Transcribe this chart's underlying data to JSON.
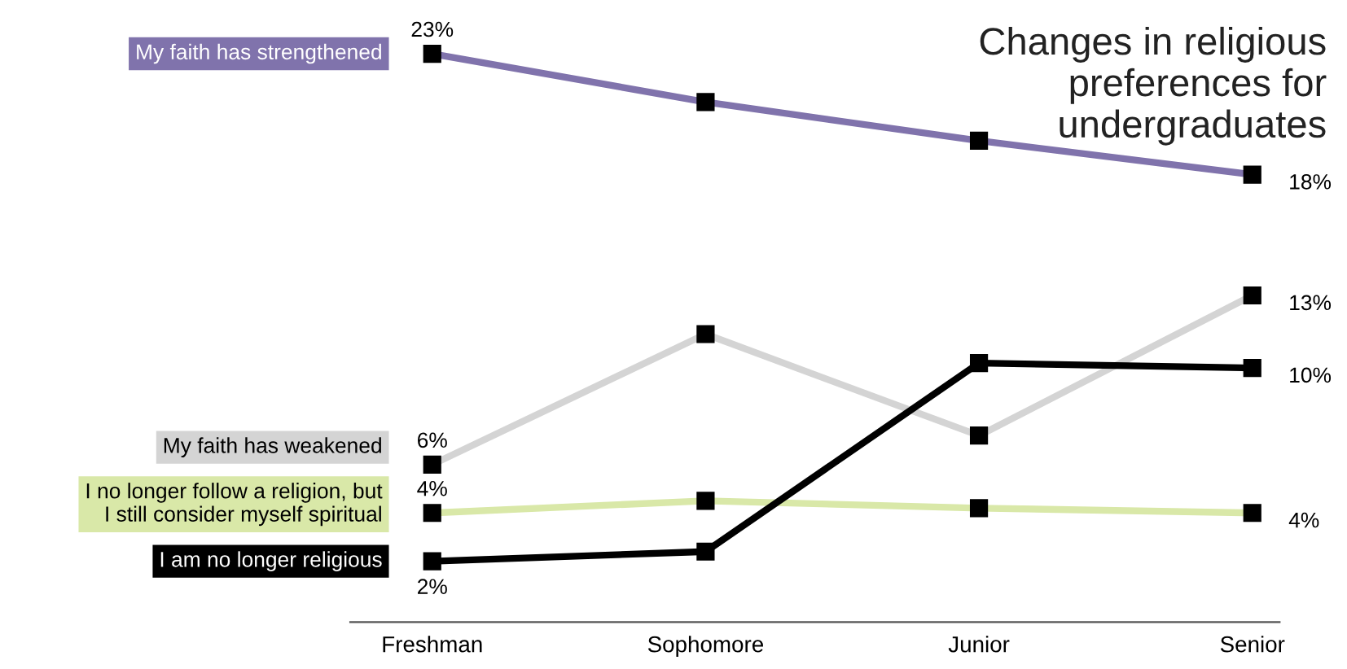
{
  "chart_data": {
    "type": "line",
    "title": "Changes in religious\npreferences for\nundergraduates",
    "categories": [
      "Freshman",
      "Sophomore",
      "Junior",
      "Senior"
    ],
    "marker": "square",
    "grid": false,
    "legend": false,
    "series": [
      {
        "name": "My faith has strengthened",
        "color": "#8073ac",
        "values": [
          23,
          21,
          19.4,
          18
        ],
        "value_labels": [
          "23%",
          null,
          null,
          "18%"
        ]
      },
      {
        "name": "My faith has weakened",
        "color": "#d4d4d4",
        "values": [
          6,
          11.4,
          7.2,
          13
        ],
        "value_labels": [
          "6%",
          null,
          null,
          "13%"
        ]
      },
      {
        "name": "I no longer follow a religion, but\nI still consider myself spiritual",
        "color": "#d9e8a8",
        "values": [
          4,
          4.5,
          4.2,
          4
        ],
        "value_labels": [
          "4%",
          null,
          null,
          "4%"
        ]
      },
      {
        "name": "I am no longer religious",
        "color": "#000000",
        "values": [
          2,
          2.4,
          10.2,
          10
        ],
        "value_labels": [
          "2%",
          null,
          null,
          "10%"
        ]
      }
    ]
  }
}
